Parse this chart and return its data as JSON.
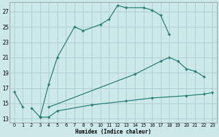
{
  "bg_color": "#cce8e8",
  "grid_color": "#aacccc",
  "line_color": "#1a7a6e",
  "xlabel": "Humidex (Indice chaleur)",
  "xlim": [
    -0.5,
    23.5
  ],
  "ylim": [
    12.5,
    28.2
  ],
  "xticks": [
    0,
    1,
    2,
    3,
    4,
    5,
    6,
    7,
    8,
    9,
    10,
    11,
    12,
    13,
    14,
    15,
    16,
    17,
    18,
    19,
    20,
    21,
    22,
    23
  ],
  "yticks": [
    13,
    15,
    17,
    19,
    21,
    23,
    25,
    27
  ],
  "line1_x": [
    0,
    1
  ],
  "line1_y": [
    16.5,
    14.5
  ],
  "line2_x": [
    2,
    3,
    4,
    5,
    7,
    8,
    10,
    11,
    12,
    13,
    15,
    16,
    17,
    18
  ],
  "line2_y": [
    14.4,
    13.2,
    17.5,
    21.0,
    25.0,
    24.5,
    25.3,
    26.0,
    27.8,
    27.5,
    27.5,
    27.2,
    26.5,
    24.0
  ],
  "line3_x": [
    4,
    14,
    17,
    18,
    19,
    20,
    21,
    22
  ],
  "line3_y": [
    14.5,
    18.8,
    20.5,
    21.0,
    20.5,
    19.5,
    19.2,
    18.5
  ],
  "line4_x": [
    3,
    4,
    5,
    9,
    13,
    16,
    20,
    22,
    23
  ],
  "line4_y": [
    13.2,
    13.2,
    14.0,
    14.8,
    15.3,
    15.7,
    16.0,
    16.2,
    16.4
  ]
}
